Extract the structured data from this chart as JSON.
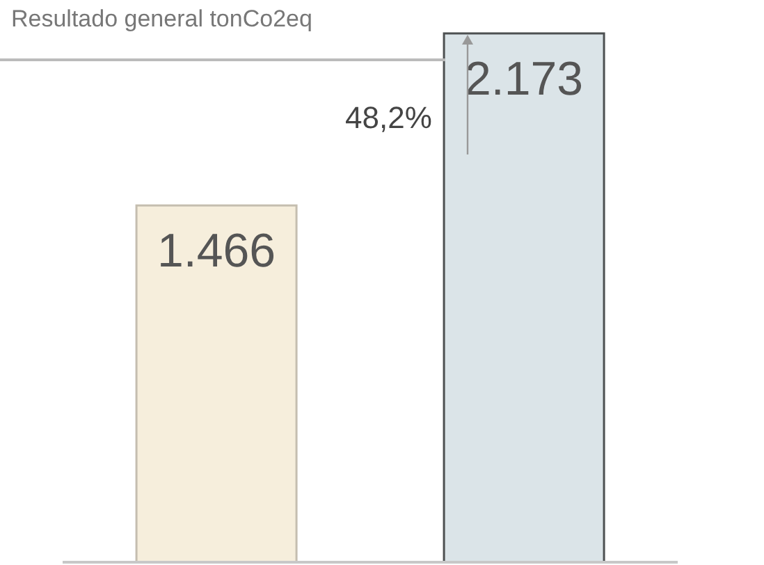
{
  "chart_data": {
    "type": "bar",
    "title": "Resultado general tonCo2eq",
    "categories": [
      null,
      null
    ],
    "values": [
      1466,
      2173
    ],
    "colors": [
      "#f6eedc",
      "#dbe4e8"
    ],
    "value_labels": [
      "1.466",
      "2.173"
    ],
    "annotations": [
      "48,2%"
    ]
  }
}
